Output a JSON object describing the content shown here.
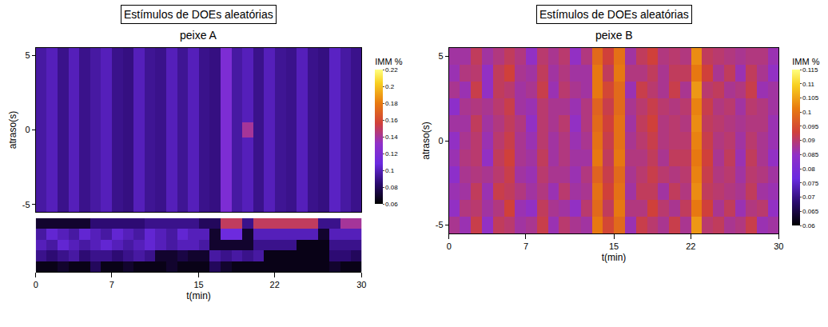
{
  "chart_data": [
    {
      "type": "heatmap",
      "title": "Estímulos de DOEs aleatórias",
      "subtitle": "peixe A",
      "x_label": "t(min)",
      "y_label": "atraso(s)",
      "colorbar_title": "IMM %",
      "xlim": [
        0,
        30
      ],
      "xticks": [
        0,
        7,
        15,
        22,
        30
      ],
      "ylim": [
        -5.5,
        5.5
      ],
      "yticks": [
        -5,
        0,
        5
      ],
      "colorbar_range": [
        0.06,
        0.22
      ],
      "colorbar_ticks": [
        0.06,
        0.08,
        0.1,
        0.12,
        0.14,
        0.16,
        0.18,
        0.2,
        0.22
      ],
      "x": [
        0.5,
        1.5,
        2.5,
        3.5,
        4.5,
        5.5,
        6.5,
        7.5,
        8.5,
        9.5,
        10.5,
        11.5,
        12.5,
        13.5,
        14.5,
        15.5,
        16.5,
        17.5,
        18.5,
        19.5,
        20.5,
        21.5,
        22.5,
        23.5,
        24.5,
        25.5,
        26.5,
        27.5,
        28.5,
        29.5
      ],
      "y": [
        -5,
        -4,
        -3,
        -2,
        -1,
        0,
        1,
        2,
        3,
        4,
        5
      ],
      "z": [
        [
          0.095,
          0.1,
          0.09,
          0.1,
          0.09,
          0.095,
          0.1,
          0.09,
          0.088,
          0.1,
          0.092,
          0.09,
          0.1,
          0.092,
          0.1,
          0.09,
          0.088,
          0.12,
          0.095,
          0.1,
          0.09,
          0.1,
          0.092,
          0.09,
          0.1,
          0.09,
          0.088,
          0.102,
          0.095,
          0.09
        ],
        [
          0.095,
          0.1,
          0.09,
          0.1,
          0.09,
          0.095,
          0.1,
          0.09,
          0.088,
          0.1,
          0.092,
          0.09,
          0.1,
          0.092,
          0.1,
          0.09,
          0.088,
          0.12,
          0.095,
          0.1,
          0.09,
          0.1,
          0.092,
          0.09,
          0.1,
          0.09,
          0.088,
          0.102,
          0.095,
          0.09
        ],
        [
          0.095,
          0.1,
          0.09,
          0.1,
          0.09,
          0.095,
          0.1,
          0.09,
          0.088,
          0.1,
          0.092,
          0.09,
          0.1,
          0.092,
          0.1,
          0.09,
          0.088,
          0.12,
          0.095,
          0.1,
          0.09,
          0.1,
          0.092,
          0.09,
          0.1,
          0.09,
          0.088,
          0.102,
          0.095,
          0.09
        ],
        [
          0.095,
          0.1,
          0.09,
          0.1,
          0.09,
          0.095,
          0.1,
          0.09,
          0.088,
          0.1,
          0.092,
          0.09,
          0.1,
          0.092,
          0.1,
          0.09,
          0.088,
          0.12,
          0.095,
          0.1,
          0.09,
          0.1,
          0.092,
          0.09,
          0.1,
          0.09,
          0.088,
          0.102,
          0.095,
          0.09
        ],
        [
          0.095,
          0.1,
          0.09,
          0.1,
          0.09,
          0.095,
          0.1,
          0.09,
          0.088,
          0.1,
          0.092,
          0.09,
          0.1,
          0.092,
          0.1,
          0.09,
          0.088,
          0.12,
          0.095,
          0.1,
          0.09,
          0.1,
          0.092,
          0.09,
          0.1,
          0.09,
          0.088,
          0.102,
          0.095,
          0.09
        ],
        [
          0.095,
          0.1,
          0.09,
          0.1,
          0.09,
          0.095,
          0.1,
          0.09,
          0.088,
          0.1,
          0.092,
          0.09,
          0.1,
          0.092,
          0.1,
          0.09,
          0.088,
          0.12,
          0.095,
          0.14,
          0.09,
          0.1,
          0.092,
          0.09,
          0.1,
          0.09,
          0.088,
          0.102,
          0.095,
          0.09
        ],
        [
          0.095,
          0.1,
          0.09,
          0.1,
          0.09,
          0.095,
          0.1,
          0.09,
          0.088,
          0.1,
          0.092,
          0.09,
          0.1,
          0.092,
          0.1,
          0.09,
          0.088,
          0.12,
          0.095,
          0.1,
          0.09,
          0.1,
          0.092,
          0.09,
          0.1,
          0.09,
          0.088,
          0.102,
          0.095,
          0.09
        ],
        [
          0.095,
          0.1,
          0.09,
          0.1,
          0.09,
          0.095,
          0.1,
          0.09,
          0.088,
          0.1,
          0.092,
          0.09,
          0.1,
          0.092,
          0.1,
          0.09,
          0.088,
          0.12,
          0.095,
          0.1,
          0.09,
          0.1,
          0.092,
          0.09,
          0.1,
          0.09,
          0.088,
          0.102,
          0.095,
          0.09
        ],
        [
          0.095,
          0.1,
          0.09,
          0.1,
          0.09,
          0.095,
          0.1,
          0.09,
          0.088,
          0.1,
          0.092,
          0.09,
          0.1,
          0.092,
          0.1,
          0.09,
          0.088,
          0.12,
          0.095,
          0.1,
          0.09,
          0.1,
          0.092,
          0.09,
          0.1,
          0.09,
          0.088,
          0.102,
          0.095,
          0.09
        ],
        [
          0.095,
          0.1,
          0.09,
          0.1,
          0.09,
          0.095,
          0.1,
          0.09,
          0.088,
          0.1,
          0.092,
          0.09,
          0.1,
          0.092,
          0.1,
          0.09,
          0.088,
          0.12,
          0.095,
          0.1,
          0.09,
          0.1,
          0.092,
          0.09,
          0.1,
          0.09,
          0.088,
          0.102,
          0.095,
          0.09
        ],
        [
          0.095,
          0.1,
          0.09,
          0.1,
          0.09,
          0.095,
          0.1,
          0.09,
          0.088,
          0.1,
          0.092,
          0.09,
          0.1,
          0.092,
          0.1,
          0.09,
          0.088,
          0.12,
          0.095,
          0.1,
          0.09,
          0.1,
          0.092,
          0.09,
          0.1,
          0.09,
          0.088,
          0.102,
          0.095,
          0.09
        ]
      ],
      "strip": {
        "tick_labels": false,
        "z": [
          [
            0.065,
            0.065,
            0.07,
            0.065,
            0.065,
            0.08,
            0.065,
            0.065,
            0.07,
            0.065,
            0.065,
            0.065,
            0.07,
            0.065,
            0.065,
            0.065,
            0.08,
            0.07,
            0.065,
            0.065,
            0.065,
            0.065,
            0.065,
            0.065,
            0.065,
            0.065,
            0.065,
            0.07,
            0.065,
            0.065
          ],
          [
            0.09,
            0.085,
            0.09,
            0.095,
            0.085,
            0.09,
            0.09,
            0.085,
            0.09,
            0.095,
            0.09,
            0.07,
            0.07,
            0.075,
            0.07,
            0.07,
            0.095,
            0.09,
            0.095,
            0.09,
            0.095,
            0.065,
            0.065,
            0.065,
            0.065,
            0.065,
            0.065,
            0.085,
            0.085,
            0.08
          ],
          [
            0.1,
            0.095,
            0.105,
            0.1,
            0.095,
            0.1,
            0.105,
            0.1,
            0.095,
            0.1,
            0.105,
            0.1,
            0.095,
            0.1,
            0.1,
            0.095,
            0.07,
            0.07,
            0.07,
            0.07,
            0.09,
            0.09,
            0.09,
            0.09,
            0.065,
            0.065,
            0.065,
            0.09,
            0.09,
            0.09
          ],
          [
            0.095,
            0.105,
            0.1,
            0.095,
            0.105,
            0.1,
            0.095,
            0.105,
            0.1,
            0.095,
            0.105,
            0.1,
            0.095,
            0.105,
            0.1,
            0.1,
            0.07,
            0.11,
            0.11,
            0.07,
            0.1,
            0.1,
            0.1,
            0.1,
            0.1,
            0.1,
            0.07,
            0.1,
            0.1,
            0.1
          ],
          [
            0.07,
            0.07,
            0.07,
            0.07,
            0.07,
            0.085,
            0.085,
            0.085,
            0.085,
            0.085,
            0.09,
            0.09,
            0.09,
            0.09,
            0.09,
            0.08,
            0.08,
            0.15,
            0.15,
            0.09,
            0.15,
            0.15,
            0.15,
            0.15,
            0.15,
            0.15,
            0.09,
            0.09,
            0.14,
            0.14
          ]
        ]
      }
    },
    {
      "type": "heatmap",
      "title": "Estímulos de DOEs aleatórias",
      "subtitle": "peixe B",
      "x_label": "t(min)",
      "y_label": "atraso(s)",
      "colorbar_title": "IMM %",
      "xlim": [
        0,
        30
      ],
      "xticks": [
        0,
        7,
        15,
        22,
        30
      ],
      "ylim": [
        -5.5,
        5.5
      ],
      "yticks": [
        -5,
        0,
        5
      ],
      "colorbar_range": [
        0.06,
        0.115
      ],
      "colorbar_ticks": [
        0.06,
        0.065,
        0.07,
        0.075,
        0.08,
        0.085,
        0.09,
        0.095,
        0.1,
        0.105,
        0.11,
        0.115
      ],
      "x": [
        0.5,
        1.5,
        2.5,
        3.5,
        4.5,
        5.5,
        6.5,
        7.5,
        8.5,
        9.5,
        10.5,
        11.5,
        12.5,
        13.5,
        14.5,
        15.5,
        16.5,
        17.5,
        18.5,
        19.5,
        20.5,
        21.5,
        22.5,
        23.5,
        24.5,
        25.5,
        26.5,
        27.5,
        28.5,
        29.5
      ],
      "y": [
        -5,
        -4,
        -3,
        -2,
        -1,
        0,
        1,
        2,
        3,
        4,
        5
      ],
      "z": [
        [
          0.088,
          0.086,
          0.092,
          0.085,
          0.091,
          0.09,
          0.087,
          0.088,
          0.092,
          0.086,
          0.09,
          0.088,
          0.087,
          0.101,
          0.094,
          0.099,
          0.086,
          0.092,
          0.09,
          0.088,
          0.092,
          0.088,
          0.104,
          0.09,
          0.091,
          0.088,
          0.089,
          0.092,
          0.086,
          0.087
        ],
        [
          0.085,
          0.089,
          0.09,
          0.087,
          0.089,
          0.093,
          0.086,
          0.085,
          0.091,
          0.088,
          0.087,
          0.085,
          0.09,
          0.099,
          0.091,
          0.101,
          0.089,
          0.089,
          0.093,
          0.09,
          0.088,
          0.091,
          0.101,
          0.093,
          0.088,
          0.091,
          0.086,
          0.089,
          0.09,
          0.085
        ],
        [
          0.086,
          0.087,
          0.091,
          0.086,
          0.092,
          0.091,
          0.089,
          0.087,
          0.089,
          0.086,
          0.09,
          0.087,
          0.088,
          0.1,
          0.093,
          0.1,
          0.087,
          0.091,
          0.091,
          0.087,
          0.091,
          0.089,
          0.103,
          0.091,
          0.09,
          0.089,
          0.088,
          0.091,
          0.087,
          0.086
        ],
        [
          0.084,
          0.088,
          0.089,
          0.088,
          0.09,
          0.092,
          0.087,
          0.086,
          0.09,
          0.088,
          0.088,
          0.086,
          0.089,
          0.098,
          0.092,
          0.099,
          0.088,
          0.09,
          0.092,
          0.09,
          0.089,
          0.09,
          0.102,
          0.092,
          0.089,
          0.09,
          0.087,
          0.09,
          0.089,
          0.087
        ],
        [
          0.086,
          0.089,
          0.09,
          0.085,
          0.091,
          0.093,
          0.088,
          0.087,
          0.091,
          0.087,
          0.089,
          0.087,
          0.087,
          0.101,
          0.091,
          0.101,
          0.089,
          0.089,
          0.091,
          0.088,
          0.091,
          0.091,
          0.101,
          0.093,
          0.088,
          0.091,
          0.086,
          0.091,
          0.088,
          0.085
        ],
        [
          0.085,
          0.088,
          0.09,
          0.086,
          0.09,
          0.092,
          0.088,
          0.086,
          0.09,
          0.087,
          0.089,
          0.086,
          0.088,
          0.1,
          0.092,
          0.1,
          0.088,
          0.09,
          0.092,
          0.089,
          0.09,
          0.09,
          0.102,
          0.092,
          0.089,
          0.09,
          0.087,
          0.09,
          0.088,
          0.086
        ],
        [
          0.087,
          0.087,
          0.091,
          0.087,
          0.089,
          0.091,
          0.089,
          0.085,
          0.09,
          0.088,
          0.09,
          0.085,
          0.089,
          0.099,
          0.093,
          0.1,
          0.087,
          0.091,
          0.093,
          0.089,
          0.09,
          0.089,
          0.103,
          0.091,
          0.09,
          0.089,
          0.088,
          0.089,
          0.089,
          0.086
        ],
        [
          0.084,
          0.088,
          0.089,
          0.088,
          0.09,
          0.092,
          0.087,
          0.086,
          0.09,
          0.088,
          0.088,
          0.086,
          0.089,
          0.098,
          0.092,
          0.099,
          0.088,
          0.09,
          0.092,
          0.09,
          0.089,
          0.09,
          0.102,
          0.092,
          0.089,
          0.09,
          0.087,
          0.09,
          0.089,
          0.087
        ],
        [
          0.088,
          0.086,
          0.092,
          0.085,
          0.091,
          0.09,
          0.087,
          0.088,
          0.092,
          0.086,
          0.09,
          0.088,
          0.087,
          0.101,
          0.094,
          0.099,
          0.086,
          0.092,
          0.09,
          0.088,
          0.092,
          0.088,
          0.104,
          0.09,
          0.091,
          0.088,
          0.089,
          0.092,
          0.086,
          0.087
        ],
        [
          0.086,
          0.089,
          0.09,
          0.085,
          0.091,
          0.093,
          0.088,
          0.087,
          0.091,
          0.087,
          0.089,
          0.087,
          0.087,
          0.101,
          0.091,
          0.101,
          0.089,
          0.089,
          0.091,
          0.088,
          0.091,
          0.091,
          0.101,
          0.093,
          0.088,
          0.091,
          0.086,
          0.091,
          0.088,
          0.085
        ],
        [
          0.087,
          0.087,
          0.091,
          0.087,
          0.089,
          0.091,
          0.089,
          0.085,
          0.09,
          0.088,
          0.09,
          0.085,
          0.089,
          0.099,
          0.093,
          0.1,
          0.087,
          0.091,
          0.093,
          0.089,
          0.09,
          0.089,
          0.103,
          0.091,
          0.09,
          0.089,
          0.088,
          0.089,
          0.089,
          0.086
        ]
      ]
    }
  ]
}
